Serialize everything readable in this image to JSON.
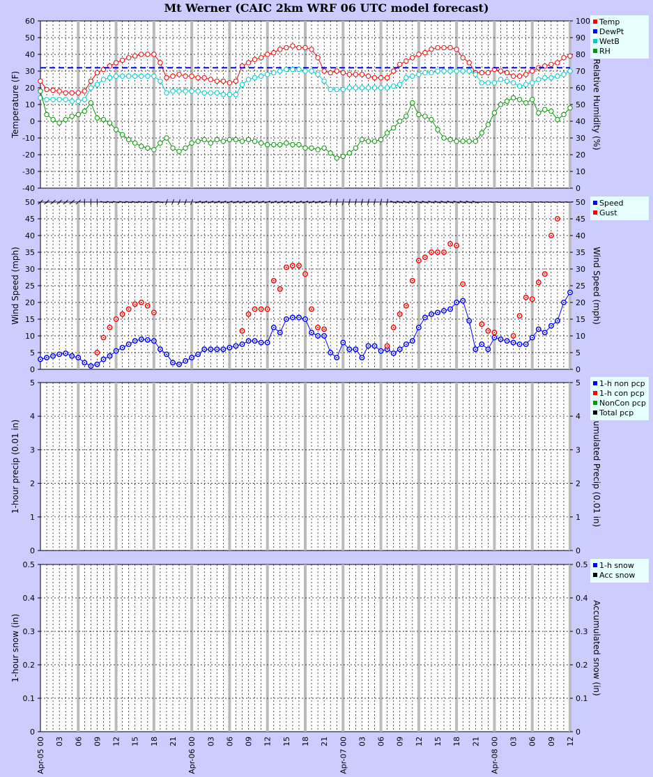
{
  "title": "Mt Werner (CAIC 2km WRF 06 UTC model forecast)",
  "colors": {
    "background": "#ccccff",
    "temp": "#ff0000",
    "dewpt": "#0000ff",
    "wetb": "#00cccc",
    "rh": "#009900",
    "speed": "#0000ff",
    "gust": "#ff0000",
    "nonpcp": "#0000ff",
    "conpcp": "#ff0000",
    "nonconpcp": "#009900",
    "totalpcp": "#000000"
  },
  "x_ticks": [
    "00",
    "03",
    "06",
    "09",
    "12",
    "15",
    "18",
    "21",
    "00",
    "03",
    "06",
    "09",
    "12",
    "15",
    "18",
    "21",
    "00",
    "03",
    "06",
    "09",
    "12",
    "15",
    "18",
    "21",
    "00",
    "03",
    "06",
    "09",
    "12"
  ],
  "date_labels": [
    "Apr-05",
    "Apr-06",
    "Apr-07",
    "Apr-08"
  ],
  "chart_data": [
    {
      "type": "line",
      "panel": "temperature",
      "ylabel": "Temperature (F)",
      "y2label": "Relative Humidity (%)",
      "ylim": [
        -40,
        60
      ],
      "y2lim": [
        0,
        100
      ],
      "yticks": [
        "60",
        "50",
        "40",
        "30",
        "20",
        "10",
        "0",
        "-10",
        "-20",
        "-30",
        "-40"
      ],
      "y2ticks": [
        "100",
        "90",
        "80",
        "70",
        "60",
        "50",
        "40",
        "30",
        "20",
        "10",
        "0"
      ],
      "x_hours": [
        0,
        1,
        2,
        3,
        4,
        5,
        6,
        7,
        8,
        9,
        10,
        11,
        12,
        13,
        14,
        15,
        16,
        17,
        18,
        19,
        20,
        21,
        22,
        23,
        24,
        25,
        26,
        27,
        28,
        29,
        30,
        31,
        32,
        33,
        34,
        35,
        36,
        37,
        38,
        39,
        40,
        41,
        42,
        43,
        44,
        45,
        46,
        47,
        48,
        49,
        50,
        51,
        52,
        53,
        54,
        55,
        56,
        57,
        58,
        59,
        60,
        61,
        62,
        63,
        64,
        65,
        66,
        67,
        68,
        69,
        70,
        71,
        72,
        73,
        74,
        75,
        76,
        77,
        78,
        79,
        80,
        81,
        82,
        83,
        84
      ],
      "series": [
        {
          "name": "Temp",
          "color": "#ff0000",
          "values": [
            24,
            19,
            18.5,
            18,
            17,
            17,
            17,
            18,
            24,
            29,
            31,
            33,
            35,
            36.5,
            38,
            39,
            40,
            40,
            40,
            35,
            26,
            27,
            28,
            27,
            27,
            26,
            26,
            25,
            24,
            24,
            23,
            24,
            33,
            35,
            37,
            38,
            40,
            41,
            43,
            44,
            45,
            44,
            44,
            43,
            38,
            30,
            29,
            30,
            29,
            28,
            28,
            28,
            27,
            26,
            26,
            26,
            30,
            34,
            36,
            38,
            40,
            41,
            43,
            44,
            44,
            44,
            43,
            38,
            35,
            29,
            29,
            29,
            31,
            30,
            29,
            27,
            27,
            28,
            30,
            32,
            33,
            34,
            35,
            38,
            39
          ]
        },
        {
          "name": "DewPt",
          "color": "#0000ff",
          "dashed": true,
          "values": [
            32,
            32,
            32,
            32,
            32,
            32,
            32,
            32,
            32,
            32,
            32,
            32,
            32,
            32,
            32,
            32,
            32,
            32,
            32,
            32,
            32,
            32,
            32,
            32,
            32,
            32,
            32,
            32,
            32,
            32,
            32,
            32,
            32,
            32,
            32,
            32,
            32,
            32,
            32,
            32,
            32,
            32,
            32,
            32,
            32,
            32,
            32,
            32,
            32,
            32,
            32,
            32,
            32,
            32,
            32,
            32,
            32,
            32,
            32,
            32,
            32,
            32,
            32,
            32,
            32,
            32,
            32,
            32,
            32,
            32,
            32,
            32,
            32,
            32,
            32,
            32,
            32,
            32,
            32,
            32,
            32,
            32,
            32,
            32,
            32
          ]
        },
        {
          "name": "WetB",
          "color": "#00cccc",
          "values": [
            14,
            13,
            13,
            13,
            13,
            12,
            12,
            13,
            20,
            22,
            25,
            26,
            27,
            27,
            27,
            27,
            27,
            27,
            27,
            24,
            17,
            18,
            18,
            18,
            18,
            18,
            17,
            17,
            17,
            16,
            16,
            16,
            22,
            25,
            26,
            27,
            28,
            29,
            30,
            31,
            31,
            31,
            30,
            30,
            28,
            24,
            19,
            19,
            19,
            20,
            20,
            20,
            20,
            20,
            20,
            20,
            21,
            22,
            26,
            27,
            28,
            29,
            29,
            30,
            30,
            30,
            30,
            30,
            30,
            28,
            23,
            23,
            23,
            25,
            24,
            23,
            21,
            22,
            23,
            25,
            26,
            26,
            27,
            28,
            30
          ]
        },
        {
          "name": "RH",
          "color": "#009900",
          "axis": "y2",
          "values": [
            58,
            44,
            41,
            39,
            41,
            43,
            44,
            46,
            51,
            42,
            41,
            39,
            35,
            32,
            29,
            27,
            25,
            24,
            23,
            27,
            30,
            24,
            22,
            24,
            27,
            28,
            29,
            27,
            29,
            28,
            29,
            29,
            28,
            29,
            28,
            27,
            26,
            26,
            26,
            27,
            26,
            26,
            24,
            24,
            23,
            24,
            21,
            18,
            19,
            21,
            24,
            29,
            28,
            28,
            29,
            33,
            36,
            40,
            43,
            51,
            44,
            43,
            41,
            35,
            30,
            29,
            28,
            28,
            28,
            28,
            33,
            38,
            45,
            50,
            52,
            54,
            53,
            51,
            53,
            45,
            47,
            46,
            41,
            44,
            48
          ]
        }
      ]
    },
    {
      "type": "scatter",
      "panel": "wind",
      "ylabel": "Wind Speed (mph)",
      "y2label": "Wind Speed (mph)",
      "ylim": [
        0,
        50
      ],
      "yticks": [
        "50",
        "45",
        "40",
        "35",
        "30",
        "25",
        "20",
        "15",
        "10",
        "5",
        "0"
      ],
      "y2ticks": [
        "50",
        "45",
        "40",
        "35",
        "30",
        "25",
        "20",
        "15",
        "10",
        "5",
        "0"
      ],
      "series": [
        {
          "name": "Speed",
          "color": "#0000ff",
          "values": [
            3,
            3.5,
            4,
            4.5,
            4.8,
            4,
            3.5,
            2,
            1,
            1.5,
            3,
            4,
            5.5,
            6.5,
            7.5,
            8.5,
            9,
            8.8,
            8.5,
            6,
            4.5,
            2,
            1.5,
            2.5,
            3.5,
            4.5,
            6,
            6,
            6,
            6,
            6.5,
            7,
            7.5,
            8.5,
            8.5,
            8,
            8,
            12.5,
            11,
            15,
            15.5,
            15.5,
            15,
            11,
            10,
            10,
            5,
            3.5,
            8,
            6,
            6,
            3.5,
            7,
            7,
            5.5,
            6,
            4.8,
            6,
            7.5,
            8.5,
            12.5,
            15.5,
            16.5,
            17,
            17.5,
            18,
            20,
            20.5,
            14.5,
            6,
            7.5,
            6,
            9.5,
            9,
            8.5,
            8,
            7.5,
            7.5,
            9.5,
            12,
            11,
            13,
            14.5,
            20,
            23
          ]
        },
        {
          "name": "Gust",
          "color": "#ff0000",
          "points": [
            [
              9,
              5
            ],
            [
              10,
              9.5
            ],
            [
              11,
              12.5
            ],
            [
              12,
              15
            ],
            [
              13,
              16.5
            ],
            [
              14,
              18
            ],
            [
              15,
              19.5
            ],
            [
              16,
              20
            ],
            [
              17,
              19
            ],
            [
              18,
              17
            ],
            [
              32,
              11.5
            ],
            [
              33,
              16.5
            ],
            [
              34,
              18
            ],
            [
              35,
              18
            ],
            [
              36,
              18
            ],
            [
              37,
              26.5
            ],
            [
              38,
              24
            ],
            [
              39,
              30.5
            ],
            [
              40,
              31
            ],
            [
              41,
              31
            ],
            [
              42,
              28.5
            ],
            [
              43,
              18
            ],
            [
              44,
              12.5
            ],
            [
              45,
              12
            ],
            [
              55,
              7
            ],
            [
              56,
              12.5
            ],
            [
              57,
              16.5
            ],
            [
              58,
              19
            ],
            [
              59,
              26.5
            ],
            [
              60,
              32.5
            ],
            [
              61,
              33.5
            ],
            [
              62,
              35
            ],
            [
              63,
              35
            ],
            [
              64,
              35
            ],
            [
              65,
              37.5
            ],
            [
              66,
              37
            ],
            [
              67,
              25.5
            ],
            [
              70,
              13.5
            ],
            [
              71,
              11.5
            ],
            [
              72,
              11
            ],
            [
              75,
              10
            ],
            [
              76,
              16
            ],
            [
              77,
              21.5
            ],
            [
              78,
              21
            ],
            [
              79,
              26
            ],
            [
              80,
              28.5
            ],
            [
              81,
              40
            ],
            [
              82,
              45
            ]
          ]
        }
      ]
    },
    {
      "type": "line",
      "panel": "precip",
      "ylabel": "1-hour precip (0.01 in)",
      "y2label": "Accumulated Precip (0.01 in)",
      "ylim": [
        0,
        5
      ],
      "yticks": [
        "5",
        "4",
        "3",
        "2",
        "1",
        "0"
      ],
      "y2ticks": [
        "5",
        "4",
        "3",
        "2",
        "1",
        "0"
      ],
      "series": [
        {
          "name": "1-h non pcp",
          "color": "#0000ff",
          "values": []
        },
        {
          "name": "1-h con pcp",
          "color": "#ff0000",
          "values": []
        },
        {
          "name": "NonCon pcp",
          "color": "#009900",
          "values": []
        },
        {
          "name": "Total pcp",
          "color": "#000000",
          "values": []
        }
      ]
    },
    {
      "type": "line",
      "panel": "snow",
      "ylabel": "1-hour snow (in)",
      "y2label": "Accumulated snow (in)",
      "ylim": [
        0,
        0.5
      ],
      "yticks": [
        "0.5",
        "0.4",
        "0.3",
        "0.2",
        "0.1",
        "0"
      ],
      "y2ticks": [
        "0.5",
        "0.4",
        "0.3",
        "0.2",
        "0.1",
        "0"
      ],
      "series": [
        {
          "name": "1-h snow",
          "color": "#0000ff",
          "values": []
        },
        {
          "name": "Acc snow",
          "color": "#000000",
          "values": []
        }
      ]
    }
  ]
}
